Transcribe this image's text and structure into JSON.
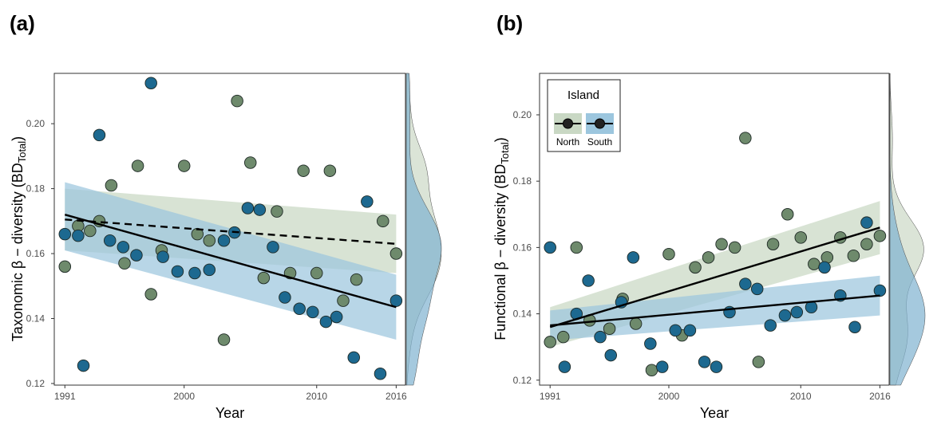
{
  "colors": {
    "north_fill": "#6e8a6c",
    "south_fill": "#1d6990",
    "north_band": "#c9d8c4",
    "south_band": "#9cc6de",
    "north_density": "#ccd8c6",
    "south_density": "#7fb2d0",
    "overlap_density": "#6d9ea4",
    "point_stroke": "#1f2a26"
  },
  "chart_data": [
    {
      "type": "scatter",
      "panel_label": "(a)",
      "xlabel": "Year",
      "ylabel_main": "Taxonomic β − diversity (BD",
      "ylabel_sub": "Total",
      "ylabel_close": ")",
      "xticks": [
        1991,
        2000,
        2010,
        2016
      ],
      "yticks": [
        0.12,
        0.14,
        0.16,
        0.18,
        0.2
      ],
      "ytick_labels": [
        "0.12",
        "0.14",
        "0.16",
        "0.18",
        "0.20"
      ],
      "xlim": [
        1990.2,
        2016.7
      ],
      "ylim": [
        0.1195,
        0.2155
      ],
      "series": [
        {
          "name": "North",
          "points": [
            [
              1991,
              0.156
            ],
            [
              1992,
              0.1685
            ],
            [
              1992.9,
              0.167
            ],
            [
              1993.6,
              0.17
            ],
            [
              1994.5,
              0.181
            ],
            [
              1995.5,
              0.157
            ],
            [
              1996.5,
              0.187
            ],
            [
              1997.5,
              0.1475
            ],
            [
              1998.3,
              0.161
            ],
            [
              2000,
              0.187
            ],
            [
              2001,
              0.166
            ],
            [
              2001.9,
              0.164
            ],
            [
              2003,
              0.1335
            ],
            [
              2004,
              0.207
            ],
            [
              2005,
              0.188
            ],
            [
              2006,
              0.1525
            ],
            [
              2007,
              0.173
            ],
            [
              2008,
              0.154
            ],
            [
              2009,
              0.1855
            ],
            [
              2010,
              0.154
            ],
            [
              2011,
              0.1855
            ],
            [
              2012,
              0.1455
            ],
            [
              2013,
              0.152
            ],
            [
              2015,
              0.17
            ],
            [
              2016,
              0.16
            ]
          ],
          "trend": {
            "x": [
              1991,
              2016
            ],
            "y": [
              0.1705,
              0.163
            ],
            "style": "dashed"
          },
          "band": {
            "x": [
              1991,
              2016
            ],
            "lower": [
              0.161,
              0.154
            ],
            "upper": [
              0.18,
              0.172
            ]
          }
        },
        {
          "name": "South",
          "points": [
            [
              1991,
              0.166
            ],
            [
              1992,
              0.1655
            ],
            [
              1992.4,
              0.1255
            ],
            [
              1993.6,
              0.1965
            ],
            [
              1994.4,
              0.164
            ],
            [
              1995.4,
              0.162
            ],
            [
              1996.4,
              0.1595
            ],
            [
              1997.5,
              0.2125
            ],
            [
              1998.4,
              0.159
            ],
            [
              1999.5,
              0.1545
            ],
            [
              2000.8,
              0.154
            ],
            [
              2001.9,
              0.155
            ],
            [
              2003,
              0.164
            ],
            [
              2003.8,
              0.1665
            ],
            [
              2004.8,
              0.174
            ],
            [
              2005.7,
              0.1735
            ],
            [
              2006.7,
              0.162
            ],
            [
              2007.6,
              0.1465
            ],
            [
              2008.7,
              0.143
            ],
            [
              2009.7,
              0.142
            ],
            [
              2010.7,
              0.139
            ],
            [
              2011.5,
              0.1405
            ],
            [
              2012.8,
              0.128
            ],
            [
              2013.8,
              0.176
            ],
            [
              2014.8,
              0.123
            ],
            [
              2016,
              0.1455
            ]
          ],
          "trend": {
            "x": [
              1991,
              2016
            ],
            "y": [
              0.172,
              0.1435
            ],
            "style": "solid"
          },
          "band": {
            "x": [
              1991,
              2016
            ],
            "lower": [
              0.161,
              0.1335
            ],
            "upper": [
              0.182,
              0.1535
            ]
          }
        }
      ]
    },
    {
      "type": "scatter",
      "panel_label": "(b)",
      "xlabel": "Year",
      "ylabel_main": "Functional β − diversity (BD",
      "ylabel_sub": "Total",
      "ylabel_close": ")",
      "xticks": [
        1991,
        2000,
        2010,
        2016
      ],
      "yticks": [
        0.12,
        0.14,
        0.16,
        0.18,
        0.2
      ],
      "ytick_labels": [
        "0.12",
        "0.14",
        "0.16",
        "0.18",
        "0.20"
      ],
      "xlim": [
        1990.2,
        2016.7
      ],
      "ylim": [
        0.1185,
        0.2125
      ],
      "legend": {
        "title": "Island",
        "labels": [
          "North",
          "South"
        ],
        "placement": "top-left"
      },
      "series": [
        {
          "name": "North",
          "points": [
            [
              1991,
              0.1315
            ],
            [
              1992,
              0.133
            ],
            [
              1993,
              0.16
            ],
            [
              1994,
              0.138
            ],
            [
              1995.5,
              0.1355
            ],
            [
              1996.5,
              0.1445
            ],
            [
              1997.5,
              0.137
            ],
            [
              1998.7,
              0.123
            ],
            [
              2000,
              0.158
            ],
            [
              2001,
              0.1335
            ],
            [
              2002,
              0.154
            ],
            [
              2003,
              0.157
            ],
            [
              2004,
              0.161
            ],
            [
              2005,
              0.16
            ],
            [
              2005.8,
              0.193
            ],
            [
              2006.8,
              0.1255
            ],
            [
              2007.9,
              0.161
            ],
            [
              2009,
              0.17
            ],
            [
              2010,
              0.163
            ],
            [
              2011,
              0.155
            ],
            [
              2012,
              0.157
            ],
            [
              2013,
              0.163
            ],
            [
              2014,
              0.1575
            ],
            [
              2015,
              0.161
            ],
            [
              2016,
              0.1635
            ]
          ],
          "trend": {
            "x": [
              1991,
              2016
            ],
            "y": [
              0.136,
              0.166
            ],
            "style": "solid"
          },
          "band": {
            "x": [
              1991,
              2016
            ],
            "lower": [
              0.13,
              0.158
            ],
            "upper": [
              0.142,
              0.174
            ]
          }
        },
        {
          "name": "South",
          "points": [
            [
              1991,
              0.16
            ],
            [
              1992.1,
              0.124
            ],
            [
              1993,
              0.14
            ],
            [
              1993.9,
              0.15
            ],
            [
              1994.8,
              0.133
            ],
            [
              1995.6,
              0.1275
            ],
            [
              1996.4,
              0.1435
            ],
            [
              1997.3,
              0.157
            ],
            [
              1998.6,
              0.131
            ],
            [
              1999.5,
              0.124
            ],
            [
              2000.5,
              0.135
            ],
            [
              2001.6,
              0.135
            ],
            [
              2002.7,
              0.1255
            ],
            [
              2003.6,
              0.124
            ],
            [
              2004.6,
              0.1405
            ],
            [
              2005.8,
              0.149
            ],
            [
              2006.7,
              0.1475
            ],
            [
              2007.7,
              0.1365
            ],
            [
              2008.8,
              0.1395
            ],
            [
              2009.7,
              0.1405
            ],
            [
              2010.8,
              0.142
            ],
            [
              2011.8,
              0.154
            ],
            [
              2013,
              0.1455
            ],
            [
              2014.1,
              0.136
            ],
            [
              2015,
              0.1675
            ],
            [
              2016,
              0.147
            ]
          ],
          "trend": {
            "x": [
              1991,
              2016
            ],
            "y": [
              0.1365,
              0.1455
            ],
            "style": "solid"
          },
          "band": {
            "x": [
              1991,
              2016
            ],
            "lower": [
              0.132,
              0.1395
            ],
            "upper": [
              0.141,
              0.1515
            ]
          }
        }
      ]
    }
  ]
}
